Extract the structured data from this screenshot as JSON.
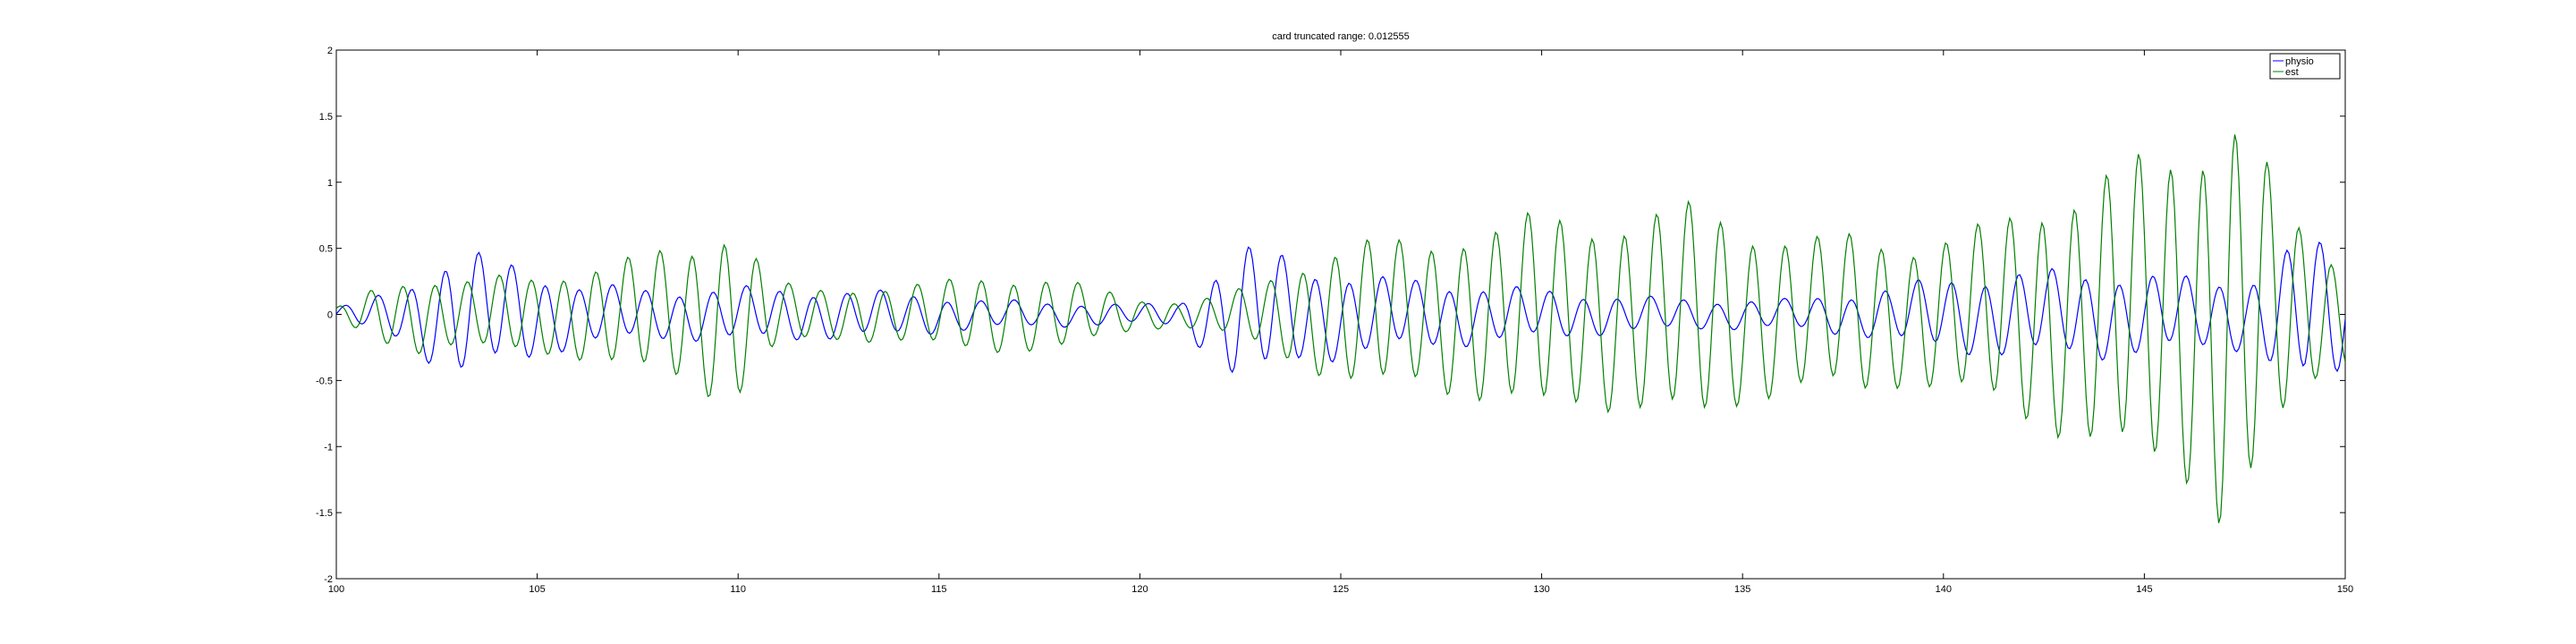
{
  "chart_data": {
    "type": "line",
    "title": "card truncated range: 0.012555",
    "xlabel": "",
    "ylabel": "",
    "xlim": [
      100,
      150
    ],
    "ylim": [
      -2,
      2
    ],
    "xticks": [
      100,
      105,
      110,
      115,
      120,
      125,
      130,
      135,
      140,
      145,
      150
    ],
    "yticks": [
      -2,
      -1.5,
      -1,
      -0.5,
      0,
      0.5,
      1,
      1.5,
      2
    ],
    "xtick_labels": [
      "100",
      "105",
      "110",
      "115",
      "120",
      "125",
      "130",
      "135",
      "140",
      "145",
      "150"
    ],
    "ytick_labels": [
      "-2",
      "-1.5",
      "-1",
      "-0.5",
      "0",
      "0.5",
      "1",
      "1.5",
      "2"
    ],
    "grid": false,
    "legend_position": "top-right",
    "series": [
      {
        "name": "physio",
        "color": "#0000ff",
        "sample_interval": 0.05,
        "amplitude_envelope": {
          "x": [
            100,
            101.5,
            103,
            104,
            106,
            108,
            110,
            112,
            114,
            116,
            118,
            120,
            121,
            122.4,
            123,
            124,
            126,
            128,
            130,
            132,
            134,
            136,
            138,
            140,
            142,
            144,
            146,
            147.5,
            149,
            150
          ],
          "y": [
            0.05,
            0.2,
            0.52,
            0.45,
            0.25,
            0.2,
            0.22,
            0.2,
            0.18,
            0.12,
            0.1,
            0.08,
            0.1,
            0.55,
            0.55,
            0.4,
            0.3,
            0.25,
            0.2,
            0.15,
            0.12,
            0.12,
            0.18,
            0.3,
            0.35,
            0.35,
            0.3,
            0.28,
            0.62,
            0.5
          ]
        }
      },
      {
        "name": "est",
        "color": "#008000",
        "sample_interval": 0.05,
        "amplitude_envelope": {
          "x": [
            100,
            101,
            102,
            103,
            104,
            105,
            106,
            107,
            108,
            109,
            109.5,
            110,
            111,
            112,
            114,
            116,
            118,
            120,
            121,
            122,
            123,
            124,
            125,
            126,
            127,
            128,
            129,
            130,
            131,
            132,
            133,
            134,
            135,
            136,
            137,
            138,
            139,
            140,
            141,
            142,
            143,
            144,
            145,
            146,
            146.5,
            147,
            147.5,
            148,
            149,
            150
          ],
          "y": [
            0.05,
            0.22,
            0.3,
            0.25,
            0.3,
            0.3,
            0.35,
            0.42,
            0.5,
            0.55,
            0.7,
            0.65,
            0.25,
            0.2,
            0.22,
            0.3,
            0.28,
            0.12,
            0.1,
            0.15,
            0.25,
            0.4,
            0.55,
            0.6,
            0.55,
            0.65,
            0.72,
            0.8,
            0.72,
            0.75,
            0.82,
            0.88,
            0.7,
            0.62,
            0.6,
            0.65,
            0.55,
            0.6,
            0.7,
            0.85,
            0.95,
            1.1,
            1.25,
            1.3,
            1.45,
            1.7,
            1.5,
            1.2,
            0.6,
            0.4
          ]
        }
      }
    ]
  }
}
